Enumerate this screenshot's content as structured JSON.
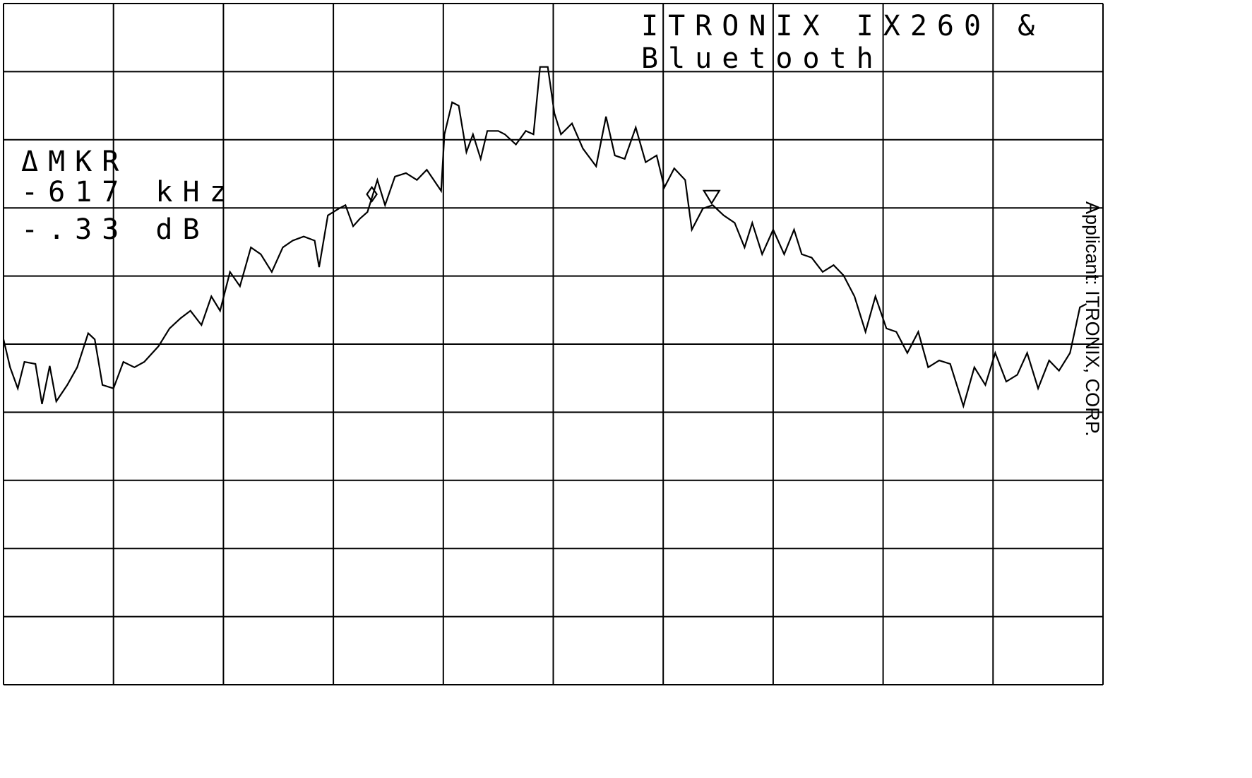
{
  "chart_data": {
    "type": "line",
    "title": "ITRONIX IX260 &",
    "subtitle": "Bluetooth",
    "annotations": [
      "ΔMKR",
      "-617 kHz",
      "-.33 dB"
    ],
    "side_note": "Applicant: ITRONIX, CORP.",
    "color": "#000000",
    "grid": true,
    "xlim": [
      0,
      10
    ],
    "ylim": [
      0,
      10
    ],
    "xticks": [
      0,
      1,
      2,
      3,
      4,
      5,
      6,
      7,
      8,
      9,
      10
    ],
    "yticks": [
      0,
      1,
      2,
      3,
      4,
      5,
      6,
      7,
      8,
      9,
      10
    ],
    "x": [
      0,
      0.06,
      0.13,
      0.19,
      0.29,
      0.35,
      0.42,
      0.48,
      0.58,
      0.67,
      0.77,
      0.83,
      0.9,
      1.0,
      1.09,
      1.19,
      1.28,
      1.41,
      1.51,
      1.61,
      1.7,
      1.8,
      1.89,
      1.97,
      2.06,
      2.15,
      2.25,
      2.34,
      2.44,
      2.54,
      2.63,
      2.73,
      2.83,
      2.87,
      2.95,
      3.05,
      3.11,
      3.18,
      3.24,
      3.31,
      3.4,
      3.47,
      3.56,
      3.66,
      3.76,
      3.85,
      3.98,
      4.01,
      4.08,
      4.14,
      4.21,
      4.27,
      4.34,
      4.4,
      4.5,
      4.56,
      4.66,
      4.75,
      4.82,
      4.88,
      4.95,
      5.01,
      5.07,
      5.17,
      5.27,
      5.39,
      5.48,
      5.56,
      5.65,
      5.75,
      5.84,
      5.94,
      6.01,
      6.1,
      6.2,
      6.26,
      6.36,
      6.45,
      6.55,
      6.65,
      6.74,
      6.81,
      6.9,
      7.0,
      7.1,
      7.19,
      7.26,
      7.35,
      7.45,
      7.55,
      7.64,
      7.74,
      7.84,
      7.93,
      8.03,
      8.12,
      8.22,
      8.32,
      8.41,
      8.51,
      8.61,
      8.73,
      8.83,
      8.93,
      9.02,
      9.12,
      9.22,
      9.31,
      9.41,
      9.51,
      9.6,
      9.7,
      9.79,
      9.85
    ],
    "values": [
      5.07,
      4.66,
      4.35,
      4.74,
      4.71,
      4.12,
      4.68,
      4.16,
      4.4,
      4.66,
      5.16,
      5.07,
      4.4,
      4.35,
      4.74,
      4.66,
      4.74,
      4.97,
      5.23,
      5.38,
      5.49,
      5.28,
      5.7,
      5.49,
      6.06,
      5.85,
      6.42,
      6.32,
      6.06,
      6.42,
      6.52,
      6.58,
      6.52,
      6.13,
      6.89,
      6.99,
      7.04,
      6.73,
      6.84,
      6.94,
      7.41,
      7.04,
      7.46,
      7.51,
      7.41,
      7.56,
      7.25,
      8.08,
      8.55,
      8.5,
      7.82,
      8.08,
      7.72,
      8.13,
      8.13,
      8.08,
      7.93,
      8.13,
      8.08,
      9.07,
      9.07,
      8.39,
      8.08,
      8.24,
      7.87,
      7.61,
      8.34,
      7.77,
      7.72,
      8.18,
      7.67,
      7.77,
      7.3,
      7.58,
      7.41,
      6.68,
      6.99,
      7.04,
      6.89,
      6.78,
      6.42,
      6.78,
      6.32,
      6.68,
      6.32,
      6.68,
      6.32,
      6.27,
      6.06,
      6.16,
      6.01,
      5.7,
      5.18,
      5.7,
      5.23,
      5.18,
      4.87,
      5.18,
      4.66,
      4.76,
      4.71,
      4.09,
      4.66,
      4.4,
      4.87,
      4.45,
      4.55,
      4.87,
      4.35,
      4.76,
      4.61,
      4.87,
      5.54,
      5.59
    ],
    "markers": [
      {
        "shape": "diamond",
        "x": 3.35,
        "y": 7.2
      },
      {
        "shape": "triangle",
        "x": 6.44,
        "y": 7.17
      }
    ]
  }
}
